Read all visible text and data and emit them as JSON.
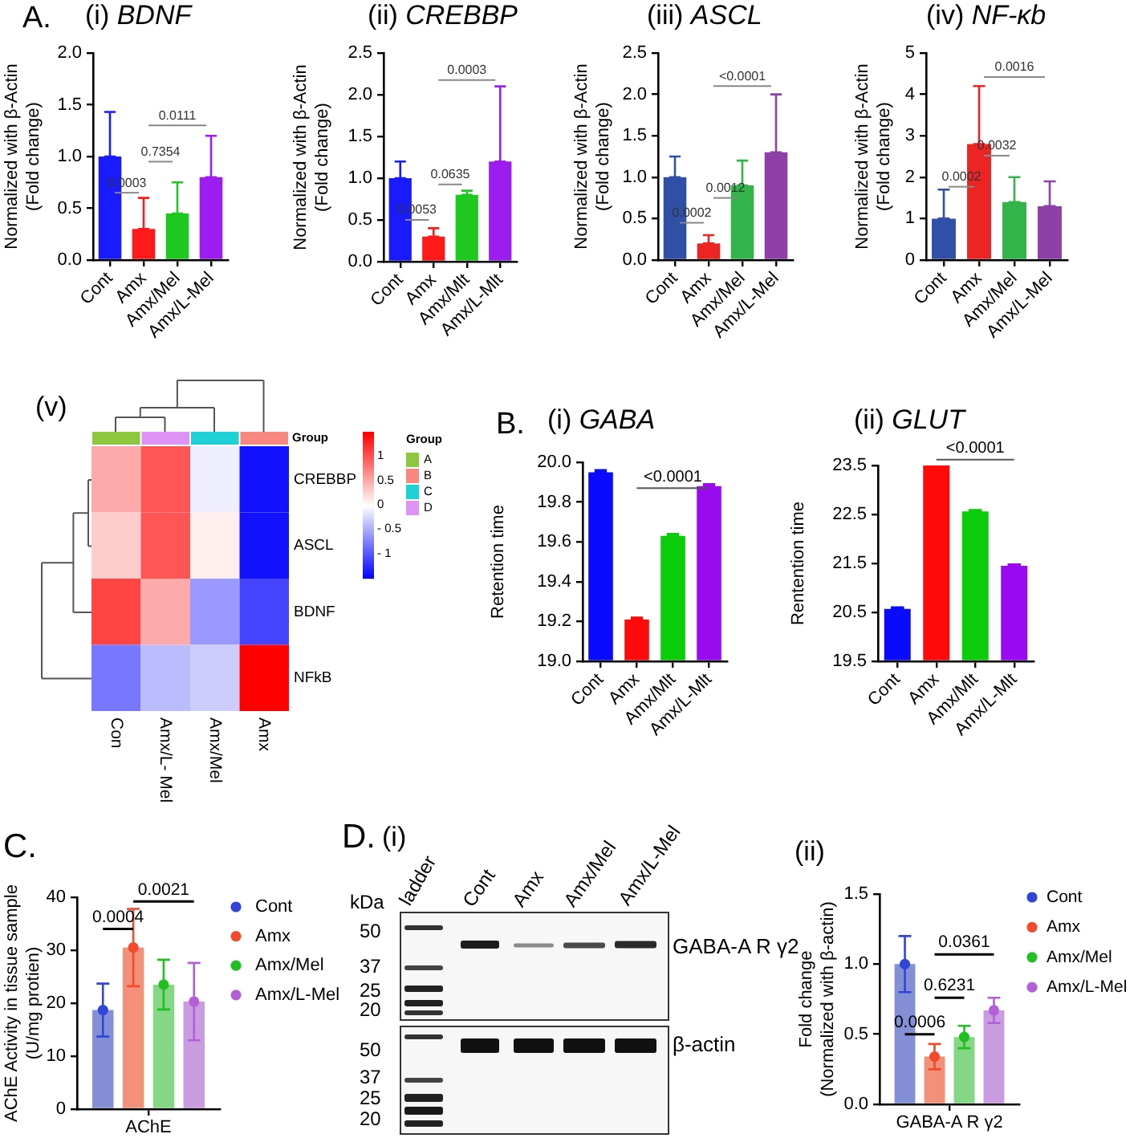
{
  "chart_data": [
    {
      "type": "bar",
      "title": "(i) BDNF",
      "ylabel": "Normalized with β-Actin\n(Fold change)",
      "categories": [
        "Cont",
        "Amx",
        "Amx/Mel",
        "Amx/L-Mel"
      ],
      "values": [
        1.0,
        0.3,
        0.45,
        0.8
      ],
      "colors": [
        "#1a1aff",
        "#ff1a1a",
        "#1ec81e",
        "#9d1cf0"
      ],
      "errors": [
        [
          1.0,
          1.43
        ],
        [
          0.3,
          0.6
        ],
        [
          0.45,
          0.75
        ],
        [
          0.8,
          1.2
        ]
      ],
      "ylim": [
        0,
        2
      ],
      "yticks": [
        {
          "value": 0,
          "label": "0.0"
        },
        0.5,
        {
          "value": 1,
          "label": "1.0"
        },
        1.5,
        {
          "value": 2,
          "label": "2.0"
        }
      ],
      "annotations": [
        "A.",
        "0.0003",
        "0.7354",
        "0.0111"
      ]
    },
    {
      "type": "bar",
      "title": "(ii) CREBBP",
      "ylabel": "Normalized with β-Actin\n(Fold change)",
      "categories": [
        "Cont",
        "Amx",
        "Amx/Mlt",
        "Amx/L-Mlt"
      ],
      "values": [
        1.0,
        0.3,
        0.8,
        1.2
      ],
      "colors": [
        "#1a1aff",
        "#ff1a1a",
        "#1ec81e",
        "#9d1cf0"
      ],
      "errors": [
        [
          1.0,
          1.2
        ],
        [
          0.3,
          0.4
        ],
        [
          0.8,
          0.85
        ],
        [
          1.2,
          2.1
        ]
      ],
      "ylim": [
        0,
        2.5
      ],
      "yticks": [
        {
          "value": 0,
          "label": "0.0"
        },
        0.5,
        {
          "value": 1,
          "label": "1.0"
        },
        1.5,
        {
          "value": 2,
          "label": "2.0"
        },
        2.5
      ],
      "annotations": [
        "0.0053",
        "0.0635",
        "0.0003"
      ]
    },
    {
      "type": "bar",
      "title": "(iii) ASCL",
      "ylabel": "Normalized with β-Actin\n(Fold change)",
      "categories": [
        "Cont",
        "Amx",
        "Amx/Mel",
        "Amx/L-Mel"
      ],
      "values": [
        1.0,
        0.2,
        0.9,
        1.3
      ],
      "colors": [
        "#3050a8",
        "#ec2424",
        "#33b44a",
        "#8e3fa8"
      ],
      "errors": [
        [
          1.0,
          1.25
        ],
        [
          0.2,
          0.3
        ],
        [
          0.9,
          1.2
        ],
        [
          1.3,
          2.0
        ]
      ],
      "ylim": [
        0,
        2.5
      ],
      "yticks": [
        {
          "value": 0,
          "label": "0.0"
        },
        0.5,
        {
          "value": 1,
          "label": "1.0"
        },
        1.5,
        {
          "value": 2,
          "label": "2.0"
        },
        2.5
      ],
      "annotations": [
        "0.0002",
        "0.0012",
        "<0.0001"
      ]
    },
    {
      "type": "bar",
      "title": "(iv) NF-κb",
      "ylabel": "Normalized with β-Actin\n(Fold change)",
      "categories": [
        "Cont",
        "Amx",
        "Amx/Mel",
        "Amx/L-Mel"
      ],
      "values": [
        1.0,
        2.8,
        1.4,
        1.3
      ],
      "colors": [
        "#3050a8",
        "#ec2424",
        "#33b44a",
        "#8e3fa8"
      ],
      "errors": [
        [
          1.0,
          1.7
        ],
        [
          2.8,
          4.2
        ],
        [
          1.4,
          2.0
        ],
        [
          1.3,
          1.9
        ]
      ],
      "ylim": [
        0,
        5
      ],
      "yticks": [
        0,
        1,
        2,
        3,
        4,
        5
      ],
      "annotations": [
        "0.0002",
        "0.0032",
        "0.0016"
      ]
    },
    {
      "type": "heatmap",
      "title": "(v)",
      "categories": [
        "Con",
        "Amx/L- Mel",
        "Amx/Mel",
        "Amx"
      ],
      "y_categories": [
        "CREBBP",
        "ASCL",
        "BDNF",
        "NFkB"
      ],
      "cells": [
        [
          0.5,
          1.0,
          -0.1,
          -1.4
        ],
        [
          0.3,
          1.0,
          0.1,
          -1.4
        ],
        [
          1.1,
          0.5,
          -0.6,
          -1.1
        ],
        [
          -0.8,
          -0.4,
          -0.3,
          1.5
        ]
      ],
      "clim": [
        -1.5,
        1.5
      ],
      "cticks": [
        1,
        0.5,
        0,
        {
          "value": -0.5,
          "label": "- 0.5"
        },
        {
          "value": -1,
          "label": "- 1"
        }
      ],
      "colors": [
        "#8dc63f",
        "#dd92f4",
        "#1fd1d6",
        "#f8877f"
      ],
      "annotations": [
        "Group",
        "Group",
        "A",
        "B",
        "C",
        "D"
      ]
    },
    {
      "type": "bar",
      "title": "(i) GABA",
      "ylabel": "Retention time",
      "categories": [
        "Cont",
        "Amx",
        "Amx/Mlt",
        "Amx/L-Mlt"
      ],
      "values": [
        19.95,
        19.21,
        19.63,
        19.88
      ],
      "colors": [
        "#0a0aff",
        "#ff0a0a",
        "#0acc0a",
        "#9a0af0"
      ],
      "errors": [
        [
          19.95,
          19.96
        ],
        [
          19.21,
          19.22
        ],
        [
          19.63,
          19.64
        ],
        [
          19.88,
          19.89
        ]
      ],
      "ylim": [
        19,
        20
      ],
      "yticks": [
        {
          "value": 19,
          "label": "19.0"
        },
        19.2,
        19.4,
        19.6,
        19.8,
        {
          "value": 20,
          "label": "20.0"
        }
      ],
      "annotations": [
        "B.",
        "<0.0001"
      ]
    },
    {
      "type": "bar",
      "title": "(ii) GLUT",
      "ylabel": "Rentention time",
      "categories": [
        "Cont",
        "Amx",
        "Amx/Mlt",
        "Amx/L-Mlt"
      ],
      "values": [
        20.57,
        23.5,
        22.56,
        21.45
      ],
      "colors": [
        "#0a0aff",
        "#ff0a0a",
        "#0acc0a",
        "#9a0af0"
      ],
      "errors": [
        [
          20.57,
          20.6
        ],
        null,
        [
          22.56,
          22.59
        ],
        [
          21.45,
          21.48
        ]
      ],
      "ylim": [
        19.5,
        23.5
      ],
      "yticks": [
        19.5,
        20.5,
        21.5,
        22.5,
        23.5
      ],
      "annotations": [
        "<0.0001"
      ]
    },
    {
      "type": "bar",
      "ylabel": "AChE Activity in tissue sample\n(U/mg protien)",
      "categories": [
        "AChE"
      ],
      "series": [
        {
          "color": "#8390d6",
          "values": [
            18.7
          ]
        },
        {
          "color": "#f39079",
          "values": [
            30.5
          ]
        },
        {
          "color": "#85d685",
          "values": [
            23.5
          ]
        },
        {
          "color": "#c99be0",
          "values": [
            20.3
          ]
        },
        {
          "type": "scatter",
          "name": "Cont",
          "color": "#3146d8",
          "values": [
            18.7
          ],
          "errors": [
            5.0
          ]
        },
        {
          "type": "scatter",
          "name": "Amx",
          "color": "#f24a2a",
          "values": [
            30.5
          ],
          "errors": [
            7.3
          ]
        },
        {
          "type": "scatter",
          "name": "Amx/Mel",
          "color": "#22bf22",
          "values": [
            23.5
          ],
          "errors": [
            4.7
          ]
        },
        {
          "type": "scatter",
          "name": "Amx/L-Mel",
          "color": "#b35fd8",
          "values": [
            20.3
          ],
          "errors": [
            7.3
          ]
        }
      ],
      "ylim": [
        0,
        40
      ],
      "yticks": [
        0,
        10,
        20,
        30,
        40
      ],
      "legend": "right",
      "marker": "circle",
      "annotations": [
        "C.",
        "0.0004",
        "0.0021"
      ]
    },
    {
      "type": "other",
      "title": "(i)",
      "annotations": [
        "D.",
        "kDa",
        "ladder",
        "Cont",
        "Amx",
        "Amx/Mel",
        "Amx/L-Mel",
        "50",
        "37",
        "25",
        "20",
        "GABA-A R γ2",
        "50",
        "37",
        "25",
        "20",
        "β-actin"
      ]
    },
    {
      "type": "bar",
      "title": "(ii)",
      "ylabel": "Fold change\n(Normalized with β-actin)",
      "categories": [
        "GABA-A R γ2"
      ],
      "series": [
        {
          "color": "#8390d6",
          "values": [
            1.0
          ]
        },
        {
          "color": "#f39079",
          "values": [
            0.34
          ]
        },
        {
          "color": "#85d685",
          "values": [
            0.48
          ]
        },
        {
          "color": "#c99be0",
          "values": [
            0.67
          ]
        },
        {
          "type": "scatter",
          "name": "Cont",
          "color": "#3146d8",
          "values": [
            1.0
          ],
          "errors": [
            0.2
          ]
        },
        {
          "type": "scatter",
          "name": "Amx",
          "color": "#f24a2a",
          "values": [
            0.34
          ],
          "errors": [
            0.09
          ]
        },
        {
          "type": "scatter",
          "name": "Amx/Mel",
          "color": "#22bf22",
          "values": [
            0.48
          ],
          "errors": [
            0.08
          ]
        },
        {
          "type": "scatter",
          "name": "Amx/L-Mel",
          "color": "#b35fd8",
          "values": [
            0.67
          ],
          "errors": [
            0.09
          ]
        }
      ],
      "ylim": [
        0,
        1.5
      ],
      "yticks": [
        {
          "value": 0,
          "label": "0.0"
        },
        0.5,
        {
          "value": 1,
          "label": "1.0"
        },
        1.5
      ],
      "legend": "right",
      "marker": "circle",
      "annotations": [
        "0.0006",
        "0.6231",
        "0.0361"
      ]
    }
  ]
}
